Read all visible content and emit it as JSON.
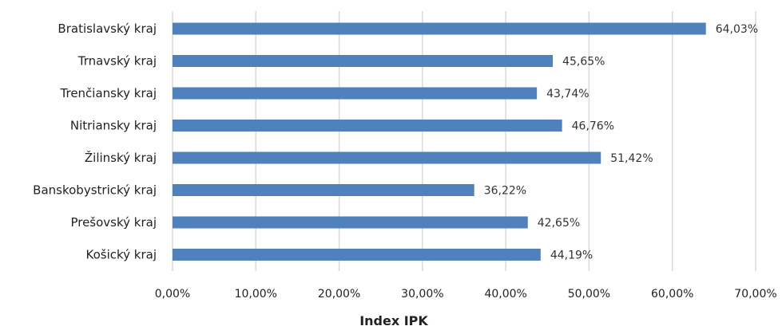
{
  "chart_data": {
    "type": "bar",
    "orientation": "horizontal",
    "categories": [
      "Bratislavský kraj",
      "Trnavský kraj",
      "Trenčiansky kraj",
      "Nitriansky kraj",
      "Žilinský kraj",
      "Banskobystrický kraj",
      "Prešovský kraj",
      "Košický kraj"
    ],
    "values": [
      64.03,
      45.65,
      43.74,
      46.76,
      51.42,
      36.22,
      42.65,
      44.19
    ],
    "value_labels": [
      "64,03%",
      "45,65%",
      "43,74%",
      "46,76%",
      "51,42%",
      "36,22%",
      "42,65%",
      "44,19%"
    ],
    "xlabel": "Index IPK",
    "ylabel": "",
    "xlim": [
      0,
      70
    ],
    "x_ticks": [
      0,
      10,
      20,
      30,
      40,
      50,
      60,
      70
    ],
    "x_tick_labels": [
      "0,00%",
      "10,00%",
      "20,00%",
      "30,00%",
      "40,00%",
      "50,00%",
      "60,00%",
      "70,00%"
    ],
    "grid": "vertical",
    "legend": "none",
    "bar_color": "#4f81bd",
    "grid_color": "#d9d9d9"
  }
}
